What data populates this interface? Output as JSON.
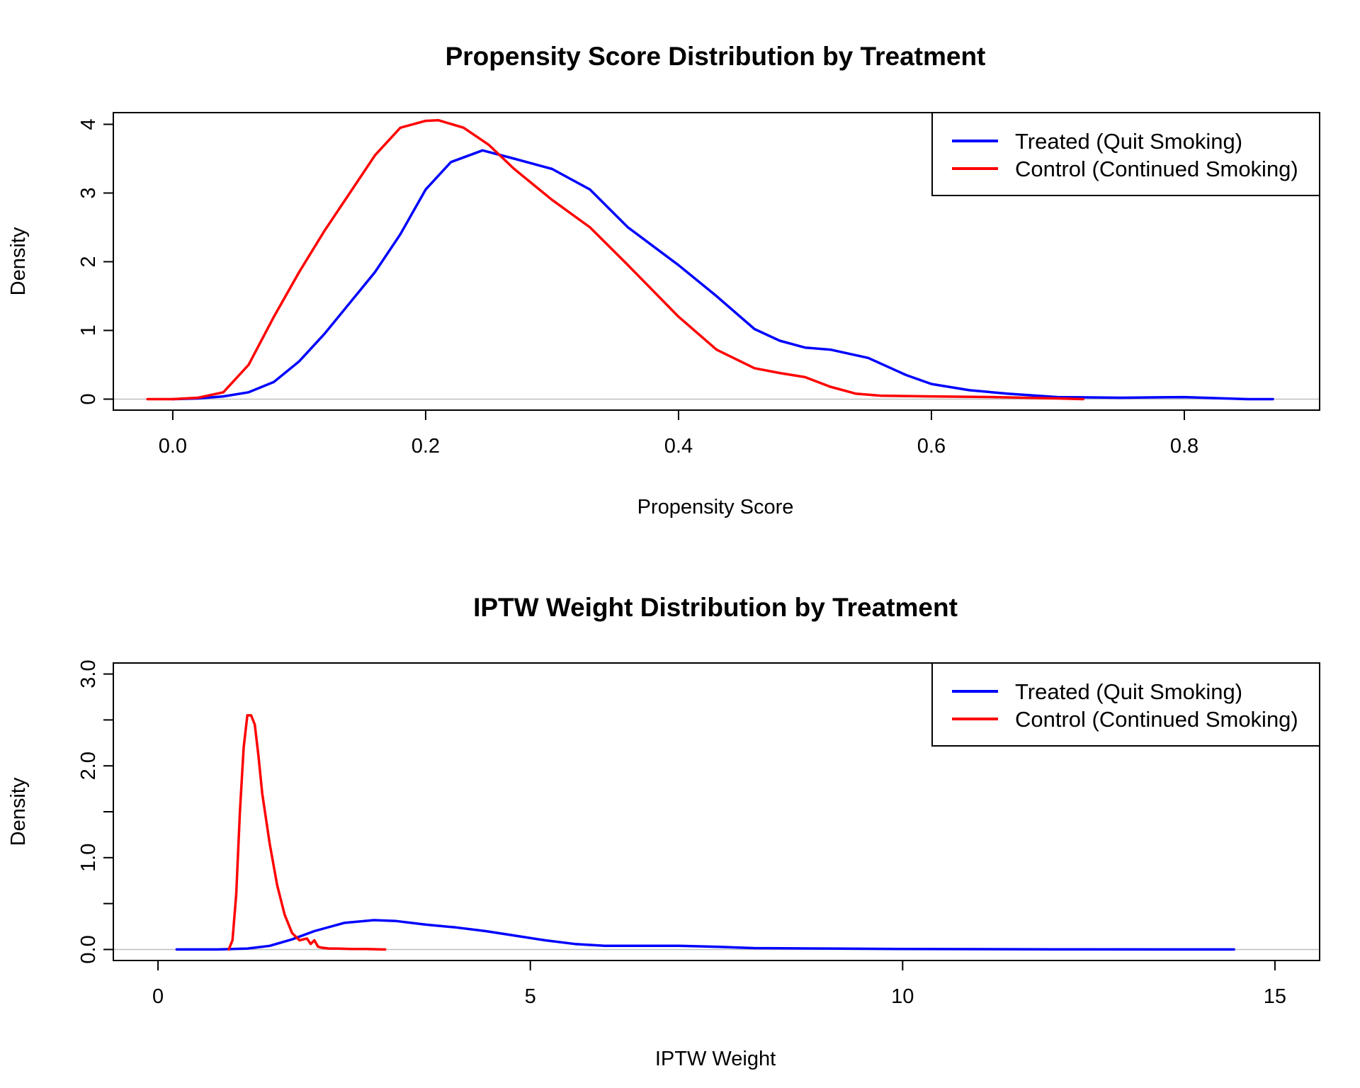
{
  "figure": {
    "background": "#ffffff"
  },
  "colors": {
    "treated": "#0000ff",
    "control": "#ff0000",
    "baseline": "#bebebe"
  },
  "chart_data": [
    {
      "type": "line",
      "title": "Propensity Score Distribution by Treatment",
      "xlabel": "Propensity Score",
      "ylabel": "Density",
      "xlim": [
        -0.047,
        0.907
      ],
      "ylim": [
        -0.16,
        4.17
      ],
      "xticks": [
        0.0,
        0.2,
        0.4,
        0.6,
        0.8
      ],
      "xtick_labels": [
        "0.0",
        "0.2",
        "0.4",
        "0.6",
        "0.8"
      ],
      "yticks": [
        0,
        1,
        2,
        3,
        4
      ],
      "ytick_labels": [
        "0",
        "1",
        "2",
        "3",
        "4"
      ],
      "legend_position": "top-right",
      "grid": false,
      "baseline": 0,
      "series": [
        {
          "name": "Treated (Quit Smoking)",
          "color": "#0000ff",
          "x": [
            0.0,
            0.02,
            0.04,
            0.06,
            0.08,
            0.1,
            0.12,
            0.14,
            0.16,
            0.18,
            0.2,
            0.22,
            0.245,
            0.27,
            0.3,
            0.33,
            0.36,
            0.4,
            0.43,
            0.46,
            0.48,
            0.5,
            0.52,
            0.55,
            0.58,
            0.6,
            0.63,
            0.66,
            0.7,
            0.75,
            0.8,
            0.85,
            0.87
          ],
          "y": [
            0.0,
            0.01,
            0.04,
            0.1,
            0.25,
            0.55,
            0.95,
            1.4,
            1.85,
            2.4,
            3.05,
            3.45,
            3.62,
            3.5,
            3.35,
            3.05,
            2.5,
            1.95,
            1.5,
            1.02,
            0.85,
            0.75,
            0.72,
            0.6,
            0.35,
            0.22,
            0.13,
            0.08,
            0.03,
            0.02,
            0.03,
            0.0,
            0.0
          ]
        },
        {
          "name": "Control (Continued Smoking)",
          "color": "#ff0000",
          "x": [
            -0.02,
            0.0,
            0.02,
            0.04,
            0.06,
            0.08,
            0.1,
            0.12,
            0.14,
            0.16,
            0.18,
            0.2,
            0.21,
            0.23,
            0.25,
            0.27,
            0.3,
            0.33,
            0.36,
            0.4,
            0.43,
            0.46,
            0.48,
            0.5,
            0.52,
            0.54,
            0.56,
            0.6,
            0.65,
            0.7,
            0.72
          ],
          "y": [
            0.0,
            0.0,
            0.02,
            0.1,
            0.5,
            1.2,
            1.85,
            2.45,
            3.0,
            3.55,
            3.95,
            4.05,
            4.06,
            3.95,
            3.7,
            3.35,
            2.9,
            2.5,
            1.95,
            1.2,
            0.72,
            0.45,
            0.38,
            0.32,
            0.18,
            0.08,
            0.05,
            0.04,
            0.03,
            0.01,
            0.0
          ]
        }
      ]
    },
    {
      "type": "line",
      "title": "IPTW Weight Distribution by Treatment",
      "xlabel": "IPTW Weight",
      "ylabel": "Density",
      "xlim": [
        -0.6,
        15.6
      ],
      "ylim": [
        -0.12,
        3.12
      ],
      "xticks": [
        0,
        5,
        10,
        15
      ],
      "xtick_labels": [
        "0",
        "5",
        "10",
        "15"
      ],
      "yticks": [
        0.0,
        0.5,
        1.0,
        1.5,
        2.0,
        2.5,
        3.0
      ],
      "ytick_labels": [
        "0.0",
        "",
        "1.0",
        "",
        "2.0",
        "",
        "3.0"
      ],
      "legend_position": "top-right",
      "grid": false,
      "baseline": 0,
      "series": [
        {
          "name": "Treated (Quit Smoking)",
          "color": "#0000ff",
          "x": [
            0.25,
            0.8,
            1.2,
            1.5,
            1.8,
            2.1,
            2.5,
            2.9,
            3.2,
            3.6,
            4.0,
            4.4,
            4.8,
            5.2,
            5.6,
            6.0,
            6.5,
            7.0,
            7.5,
            8.0,
            9.0,
            10.0,
            12.0,
            14.45
          ],
          "y": [
            0.0,
            0.0,
            0.01,
            0.04,
            0.11,
            0.2,
            0.29,
            0.32,
            0.31,
            0.27,
            0.24,
            0.2,
            0.15,
            0.1,
            0.06,
            0.04,
            0.04,
            0.04,
            0.03,
            0.015,
            0.01,
            0.005,
            0.002,
            0.0
          ]
        },
        {
          "name": "Control (Continued Smoking)",
          "color": "#ff0000",
          "x": [
            0.95,
            1.0,
            1.05,
            1.1,
            1.15,
            1.2,
            1.25,
            1.3,
            1.35,
            1.4,
            1.5,
            1.6,
            1.7,
            1.8,
            1.9,
            2.0,
            2.05,
            2.1,
            2.15,
            2.2,
            2.3,
            2.4,
            2.6,
            2.8,
            3.0,
            3.05
          ],
          "y": [
            0.0,
            0.1,
            0.6,
            1.5,
            2.2,
            2.55,
            2.55,
            2.45,
            2.1,
            1.7,
            1.15,
            0.7,
            0.38,
            0.18,
            0.1,
            0.12,
            0.06,
            0.1,
            0.03,
            0.02,
            0.01,
            0.01,
            0.005,
            0.005,
            0.0,
            0.0
          ]
        }
      ]
    }
  ]
}
